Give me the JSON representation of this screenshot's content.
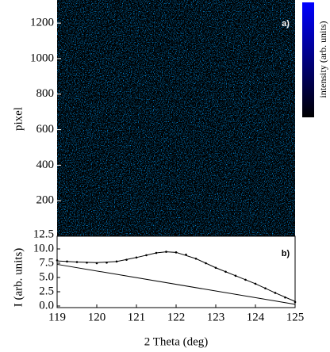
{
  "chart_data": [
    {
      "type": "image",
      "label": "a)",
      "ylabel": "pixel",
      "ylim": [
        0,
        1330
      ],
      "yticks": [
        200,
        400,
        600,
        800,
        1000,
        1200
      ],
      "colorbar_label": "intensity (arb. units)",
      "colormap": [
        "#0000ff",
        "#000000"
      ]
    },
    {
      "type": "scatter",
      "label": "b)",
      "xlabel": "2 Theta (deg)",
      "ylabel": "I (arb. units)",
      "xlim": [
        119,
        125
      ],
      "xticks": [
        119,
        120,
        121,
        122,
        123,
        124,
        125
      ],
      "ylim": [
        0,
        12.5
      ],
      "yticks": [
        {
          "value": 0,
          "label": "0.0"
        },
        {
          "value": 2.5,
          "label": "2.5"
        },
        {
          "value": 5,
          "label": "5.0"
        },
        {
          "value": 7.5,
          "label": "7.5"
        },
        {
          "value": 10,
          "label": "10.0"
        },
        {
          "value": 12.5,
          "label": "12.5"
        }
      ],
      "series": [
        {
          "kind": "points",
          "color": "#000000",
          "x": [
            119,
            119.25,
            119.5,
            119.75,
            120,
            120.25,
            120.5,
            120.75,
            121,
            121.25,
            121.5,
            121.75,
            122,
            122.25,
            122.5,
            122.75,
            123,
            123.25,
            123.5,
            123.75,
            124,
            124.25,
            124.5,
            124.75,
            125
          ],
          "values": [
            8.0,
            7.8,
            7.7,
            7.6,
            7.5,
            7.6,
            7.8,
            8.1,
            8.5,
            8.9,
            9.3,
            9.5,
            9.4,
            9.0,
            8.3,
            7.5,
            6.7,
            6.0,
            5.3,
            4.6,
            3.9,
            3.1,
            2.3,
            1.5,
            0.7
          ]
        },
        {
          "kind": "line",
          "color": "#000000",
          "x": [
            119,
            119.5,
            120,
            120.5,
            121,
            121.5,
            121.75,
            122,
            122.5,
            123,
            123.5,
            124,
            124.5,
            125
          ],
          "values": [
            7.9,
            7.7,
            7.6,
            7.8,
            8.5,
            9.3,
            9.5,
            9.4,
            8.3,
            6.7,
            5.3,
            3.9,
            2.3,
            0.8
          ]
        },
        {
          "kind": "line",
          "color": "#000000",
          "x": [
            119,
            125
          ],
          "values": [
            7.3,
            0.3
          ]
        }
      ]
    }
  ]
}
